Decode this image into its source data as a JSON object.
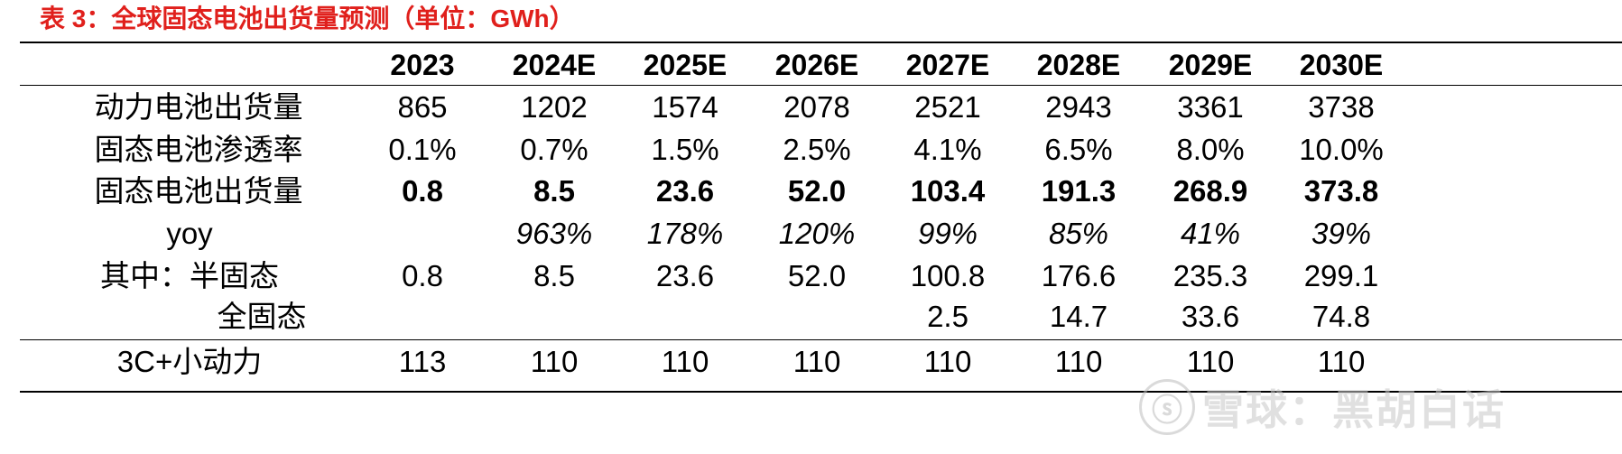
{
  "title": "表 3：全球固态电池出货量预测（单位：GWh）",
  "colors": {
    "title": "#e0201c",
    "rule": "#000000",
    "watermark": "#c8c8c8"
  },
  "table": {
    "headers": [
      "2023",
      "2024E",
      "2025E",
      "2026E",
      "2027E",
      "2028E",
      "2029E",
      "2030E"
    ],
    "rows": [
      {
        "label": "动力电池出货量",
        "values": [
          "865",
          "1202",
          "1574",
          "2078",
          "2521",
          "2943",
          "3361",
          "3738"
        ]
      },
      {
        "label": "固态电池渗透率",
        "values": [
          "0.1%",
          "0.7%",
          "1.5%",
          "2.5%",
          "4.1%",
          "6.5%",
          "8.0%",
          "10.0%"
        ]
      },
      {
        "label": "固态电池出货量",
        "values": [
          "0.8",
          "8.5",
          "23.6",
          "52.0",
          "103.4",
          "191.3",
          "268.9",
          "373.8"
        ]
      },
      {
        "label": "yoy",
        "values": [
          "",
          "963%",
          "178%",
          "120%",
          "99%",
          "85%",
          "41%",
          "39%"
        ]
      },
      {
        "label": "其中：半固态",
        "values": [
          "0.8",
          "8.5",
          "23.6",
          "52.0",
          "100.8",
          "176.6",
          "235.3",
          "299.1"
        ]
      },
      {
        "label": "全固态",
        "values": [
          "",
          "",
          "",
          "",
          "2.5",
          "14.7",
          "33.6",
          "74.8"
        ]
      },
      {
        "label": "3C+小动力",
        "values": [
          "113",
          "110",
          "110",
          "110",
          "110",
          "110",
          "110",
          "110"
        ]
      }
    ]
  },
  "watermark": {
    "icon": "snowball-logo-icon",
    "icon_glyph": "ⓢ",
    "text": "雪球：黑胡白话"
  }
}
